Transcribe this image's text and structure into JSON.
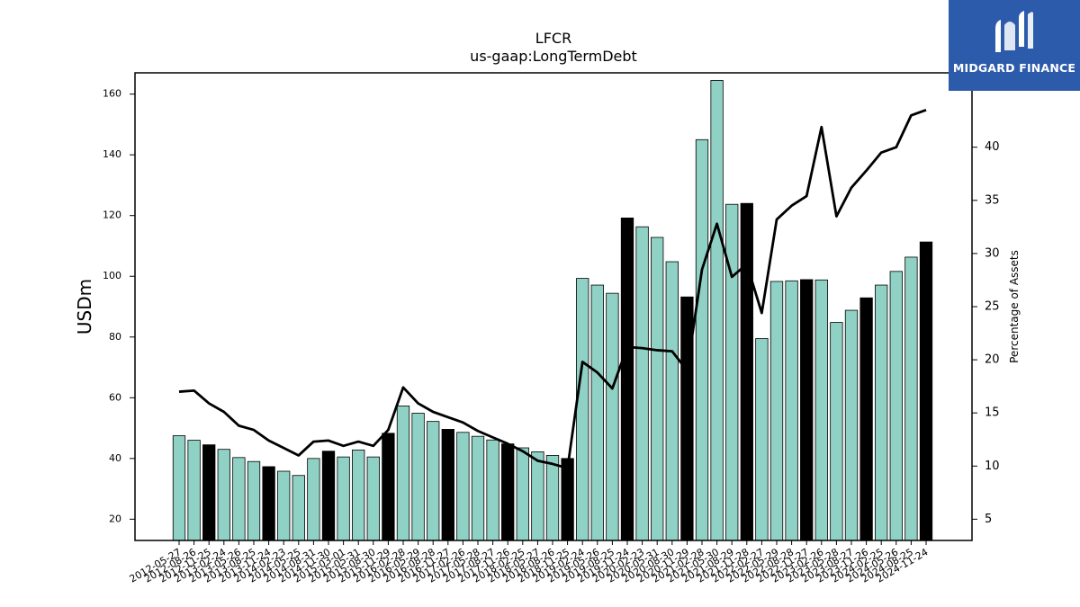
{
  "logo": {
    "text": "MIDGARD FINANCE",
    "icon": "midgard-m-icon",
    "background": "#2d5bab"
  },
  "chart_data": {
    "type": "bar",
    "title": "LFCR",
    "subtitle": "us-gaap:LongTermDebt",
    "ylabel": "USDm",
    "y2label": "Percentage of Assets",
    "ylim": [
      13,
      167
    ],
    "y2lim": [
      3,
      47
    ],
    "yticks": [
      20,
      40,
      60,
      80,
      100,
      120,
      140,
      160
    ],
    "y2ticks": [
      5,
      10,
      15,
      20,
      25,
      30,
      35,
      40
    ],
    "bar_color": "#8fd1c4",
    "highlight_color": "#000000",
    "line_color": "#000000",
    "categories": [
      "2012-05-27",
      "2012-08-26",
      "2012-11-25",
      "2013-02-24",
      "2013-05-26",
      "2013-08-25",
      "2013-11-24",
      "2014-02-23",
      "2014-05-25",
      "2014-08-31",
      "2014-11-30",
      "2015-03-01",
      "2015-05-31",
      "2015-08-30",
      "2015-11-29",
      "2016-02-28",
      "2016-05-29",
      "2016-08-28",
      "2016-11-27",
      "2017-02-26",
      "2017-05-28",
      "2017-08-27",
      "2017-11-26",
      "2018-02-25",
      "2018-05-27",
      "2018-08-26",
      "2018-11-25",
      "2019-02-24",
      "2019-05-26",
      "2019-08-25",
      "2019-11-24",
      "2020-02-23",
      "2020-05-31",
      "2020-08-30",
      "2020-11-29",
      "2021-02-28",
      "2021-05-30",
      "2021-08-29",
      "2021-11-28",
      "2022-02-27",
      "2022-05-29",
      "2022-08-28",
      "2022-11-27",
      "2023-02-26",
      "2023-05-28",
      "2023-08-27",
      "2023-11-26",
      "2024-02-25",
      "2024-05-26",
      "2024-08-25",
      "2024-11-24"
    ],
    "series": [
      {
        "kind": "bar",
        "values": [
          47.5,
          46,
          44.5,
          43,
          40.3,
          39,
          37.3,
          35.8,
          34.4,
          40,
          42.4,
          40.5,
          42.8,
          40.5,
          48.3,
          57.3,
          54.9,
          52.2,
          49.6,
          48.6,
          47.3,
          46.1,
          44.8,
          43.5,
          42.2,
          41,
          40,
          99.3,
          97.1,
          94.4,
          119.2,
          116.3,
          112.8,
          104.8,
          93.2,
          145,
          164.5,
          123.7,
          124,
          79.5,
          98.3,
          98.5,
          98.9,
          98.8,
          84.8,
          88.8,
          92.9,
          97.1,
          101.6,
          106.3,
          111.3
        ],
        "highlight": [
          false,
          false,
          true,
          false,
          false,
          false,
          true,
          false,
          false,
          false,
          true,
          false,
          false,
          false,
          true,
          false,
          false,
          false,
          true,
          false,
          false,
          false,
          true,
          false,
          false,
          false,
          true,
          false,
          false,
          false,
          true,
          false,
          false,
          false,
          true,
          false,
          false,
          false,
          true,
          false,
          false,
          false,
          true,
          false,
          false,
          false,
          true,
          false,
          false,
          false,
          true
        ]
      },
      {
        "kind": "line",
        "axis": "right",
        "values": [
          17.0,
          17.1,
          15.9,
          15.1,
          13.8,
          13.4,
          12.4,
          11.7,
          11.0,
          12.3,
          12.4,
          11.9,
          12.3,
          11.9,
          13.4,
          17.4,
          15.9,
          15.1,
          14.6,
          14.1,
          13.3,
          12.7,
          12.1,
          11.4,
          10.5,
          10.2,
          9.8,
          19.8,
          18.8,
          17.3,
          21.2,
          21.1,
          20.9,
          20.8,
          19.0,
          28.5,
          32.8,
          27.8,
          29.0,
          24.4,
          33.2,
          34.5,
          35.4,
          41.9,
          33.5,
          36.2,
          37.8,
          39.5,
          40.0,
          43.0,
          43.5
        ]
      }
    ]
  }
}
